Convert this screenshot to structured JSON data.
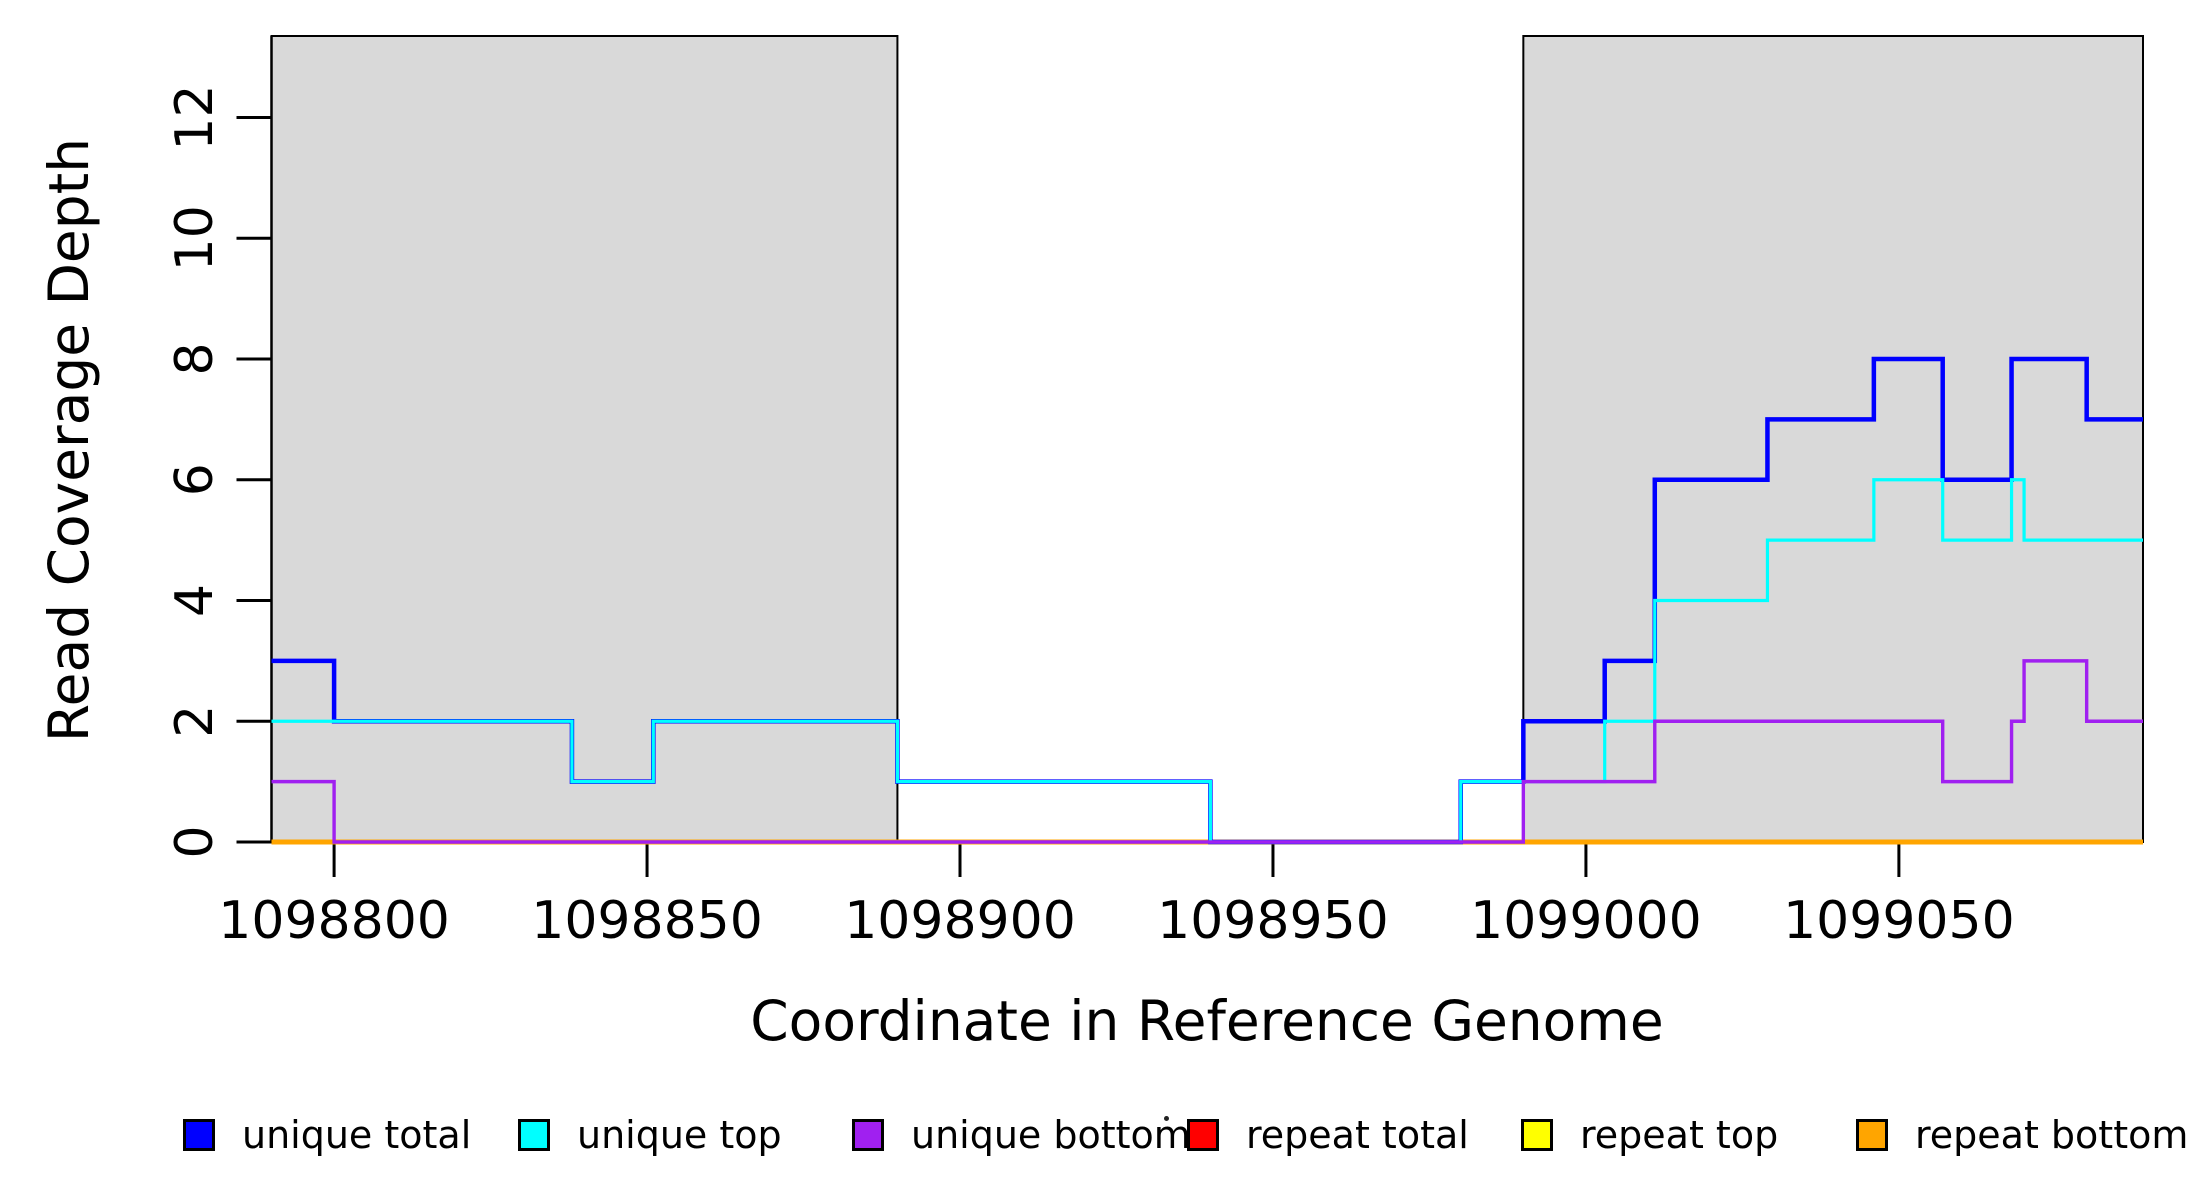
{
  "colors": {
    "background": "#FFFFFF",
    "foreground": "#000000",
    "shade": "#D9D9D9"
  },
  "annotations": {
    "stray_mark": "."
  },
  "chart_data": {
    "type": "line",
    "subtype": "step",
    "title": "",
    "xlabel": "Coordinate in Reference Genome",
    "ylabel": "Read Coverage Depth",
    "xlim": [
      1098790,
      1099089
    ],
    "ylim": [
      0,
      13.35
    ],
    "x_ticks": [
      1098800,
      1098850,
      1098900,
      1098950,
      1099000,
      1099050
    ],
    "y_ticks": [
      0,
      2,
      4,
      6,
      8,
      10,
      12
    ],
    "grid": false,
    "shade_color": "#D9D9D9",
    "shaded_regions": [
      [
        1098790,
        1098890
      ],
      [
        1098990,
        1099089
      ]
    ],
    "series": [
      {
        "name": "repeat total",
        "color": "#FF0000",
        "line_width": 5,
        "draw_order": 1,
        "steps": [
          [
            1098790,
            0
          ]
        ],
        "x_end": 1099089
      },
      {
        "name": "repeat top",
        "color": "#FFFF00",
        "line_width": 4,
        "draw_order": 2,
        "steps": [
          [
            1098790,
            0
          ]
        ],
        "x_end": 1099089
      },
      {
        "name": "repeat bottom",
        "color": "#FFA500",
        "line_width": 5,
        "draw_order": 3,
        "steps": [
          [
            1098790,
            0
          ]
        ],
        "x_end": 1099089
      },
      {
        "name": "unique total",
        "color": "#0000FF",
        "line_width": 4.5,
        "draw_order": 4,
        "steps": [
          [
            1098790,
            3
          ],
          [
            1098800,
            2
          ],
          [
            1098838,
            1
          ],
          [
            1098851,
            2
          ],
          [
            1098890,
            1
          ],
          [
            1098940,
            0
          ],
          [
            1098980,
            1
          ],
          [
            1098990,
            2
          ],
          [
            1099003,
            3
          ],
          [
            1099011,
            6
          ],
          [
            1099029,
            7
          ],
          [
            1099046,
            8
          ],
          [
            1099057,
            6
          ],
          [
            1099068,
            8
          ],
          [
            1099080,
            7
          ]
        ],
        "x_end": 1099089
      },
      {
        "name": "unique top",
        "color": "#00FFFF",
        "line_width": 3.2,
        "draw_order": 5,
        "steps": [
          [
            1098790,
            2
          ],
          [
            1098838,
            1
          ],
          [
            1098851,
            2
          ],
          [
            1098890,
            1
          ],
          [
            1098940,
            0
          ],
          [
            1098980,
            1
          ],
          [
            1099003,
            2
          ],
          [
            1099011,
            4
          ],
          [
            1099029,
            5
          ],
          [
            1099046,
            6
          ],
          [
            1099057,
            5
          ],
          [
            1099068,
            6
          ],
          [
            1099070,
            5
          ]
        ],
        "x_end": 1099089
      },
      {
        "name": "unique bottom",
        "color": "#A020F0",
        "line_width": 3.4,
        "draw_order": 6,
        "steps": [
          [
            1098790,
            1
          ],
          [
            1098800,
            0
          ],
          [
            1098990,
            1
          ],
          [
            1099011,
            2
          ],
          [
            1099057,
            1
          ],
          [
            1099068,
            2
          ],
          [
            1099070,
            3
          ],
          [
            1099080,
            2
          ]
        ],
        "x_end": 1099089
      }
    ],
    "legend": {
      "position": "bottom",
      "entries": [
        {
          "label": "unique total",
          "color": "#0000FF"
        },
        {
          "label": "unique top",
          "color": "#00FFFF"
        },
        {
          "label": "unique bottom",
          "color": "#A020F0"
        },
        {
          "label": "repeat total",
          "color": "#FF0000"
        },
        {
          "label": "repeat top",
          "color": "#FFFF00"
        },
        {
          "label": "repeat bottom",
          "color": "#FFA500"
        }
      ]
    }
  }
}
